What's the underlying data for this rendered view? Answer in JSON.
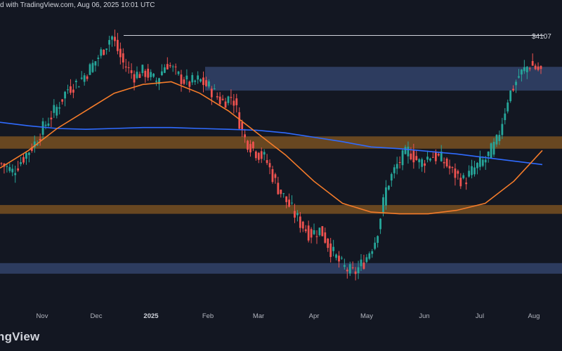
{
  "header": {
    "text": "d with TradingView.com, Aug 06, 2025 10:01 UTC"
  },
  "footer": {
    "logo_text": "ngView"
  },
  "colors": {
    "background": "#131722",
    "bull": "#26a69a",
    "bear": "#ef5350",
    "ma_blue": "#2f6bff",
    "ma_orange": "#f57c2a",
    "zone_orange": "#6d4a22",
    "zone_blue": "#2e3e63",
    "level_line": "#d1d4dc"
  },
  "chart_data": {
    "type": "candlestick",
    "title": "",
    "xlabel": "",
    "ylabel": "",
    "x_ticks": [
      {
        "label": "Nov",
        "bold": false
      },
      {
        "label": "Dec",
        "bold": false
      },
      {
        "label": "2025",
        "bold": true
      },
      {
        "label": "Feb",
        "bold": false
      },
      {
        "label": "Mar",
        "bold": false
      },
      {
        "label": "Apr",
        "bold": false
      },
      {
        "label": "May",
        "bold": false
      },
      {
        "label": "Jun",
        "bold": false
      },
      {
        "label": "Jul",
        "bold": false
      },
      {
        "label": "Aug",
        "bold": false
      }
    ],
    "price_label": "$4107",
    "resistance_level": 4107,
    "zones": [
      {
        "name": "upper-supply",
        "color": "blue",
        "low": 3480,
        "high": 3750
      },
      {
        "name": "middle-zone",
        "color": "orange",
        "low": 2820,
        "high": 2960
      },
      {
        "name": "lower-zone",
        "color": "orange",
        "low": 2080,
        "high": 2180
      },
      {
        "name": "bottom-demand",
        "color": "blue",
        "low": 1400,
        "high": 1520
      }
    ],
    "price_path": [
      2650,
      2560,
      2720,
      2880,
      3100,
      3280,
      3500,
      3580,
      3720,
      3900,
      4107,
      3800,
      3650,
      3700,
      3580,
      3800,
      3650,
      3560,
      3600,
      3500,
      3350,
      3420,
      2950,
      2800,
      2700,
      2400,
      2200,
      2000,
      1850,
      1900,
      1650,
      1480,
      1400,
      1550,
      1800,
      2400,
      2650,
      2800,
      2650,
      2750,
      2700,
      2550,
      2450,
      2600,
      2700,
      2900,
      3400,
      3650,
      3780,
      3700
    ],
    "ma_blue_path": [
      3120,
      3080,
      3050,
      3040,
      3050,
      3060,
      3060,
      3050,
      3040,
      3030,
      3000,
      2950,
      2900,
      2840,
      2820,
      2790,
      2760,
      2720,
      2680,
      2640
    ],
    "ma_orange_path": [
      2600,
      2800,
      3050,
      3250,
      3450,
      3550,
      3580,
      3450,
      3250,
      3000,
      2750,
      2450,
      2200,
      2100,
      2080,
      2080,
      2120,
      2200,
      2450,
      2800
    ]
  }
}
